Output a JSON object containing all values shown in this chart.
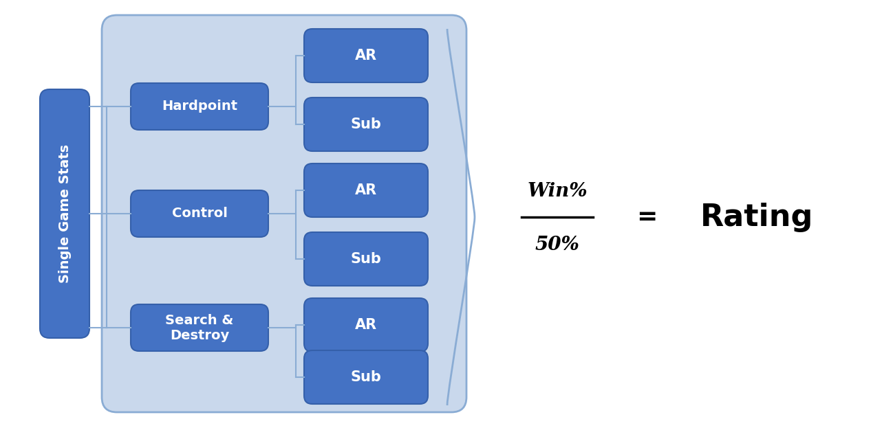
{
  "bg_color": "#ffffff",
  "outer_box_facecolor": "#c9d8ec",
  "outer_box_edgecolor": "#8aacd4",
  "dark_blue": "#4472c4",
  "dark_blue_edge": "#3560aa",
  "single_game_stats": "Single Game Stats",
  "mode_labels": [
    "Hardpoint",
    "Control",
    "Search &\nDestroy"
  ],
  "sub_labels": [
    "AR",
    "Sub"
  ],
  "formula_numerator": "Win%",
  "formula_denominator": "50%",
  "formula_equals": "=",
  "formula_result": "Rating",
  "line_color": "#8aacd4",
  "figsize": [
    12.98,
    6.23
  ],
  "dpi": 100
}
